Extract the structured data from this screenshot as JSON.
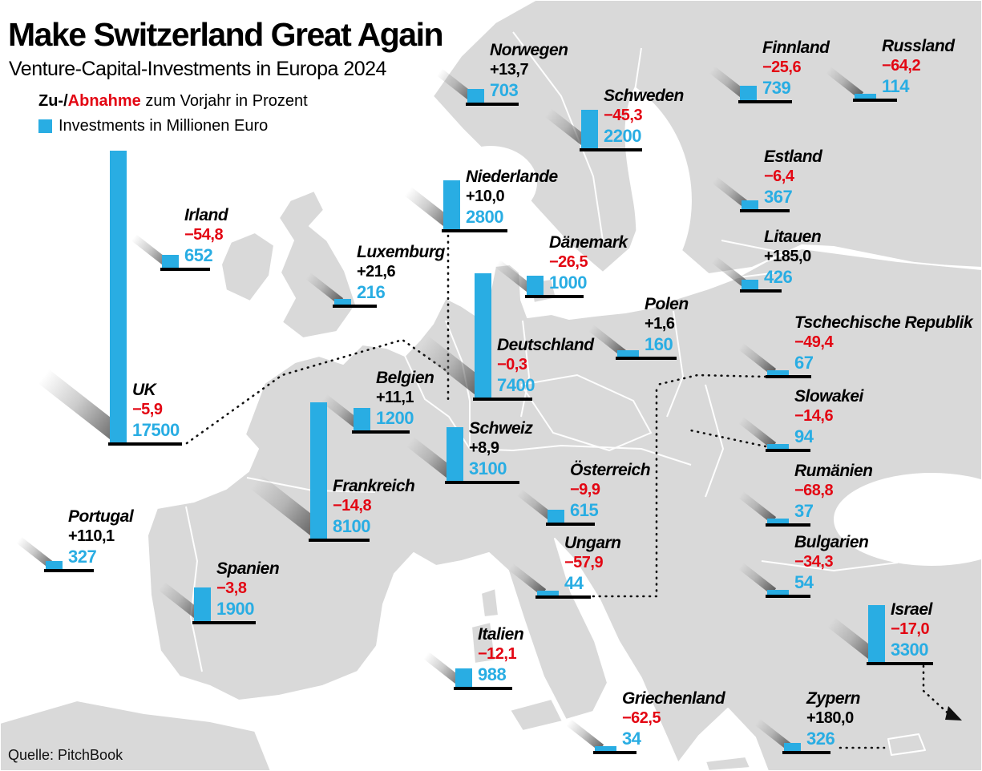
{
  "legend": {
    "change_prefix": "Zu-/",
    "change_negative_word": "Abnahme",
    "change_suffix": " zum Vorjahr in Prozent",
    "investments_label": "Investments in Millionen Euro",
    "investments_swatch": "cyan-square"
  },
  "source": {
    "label": "Quelle: PitchBook"
  },
  "colors": {
    "accent_cyan": "#29ade3",
    "negative_red": "#e30613",
    "text_black": "#000000",
    "map_land_gray": "#d9d9d9",
    "sea_white": "#ffffff"
  },
  "chart_data": {
    "type": "bar",
    "title": "Make Switzerland Great Again",
    "subtitle": "Venture-Capital-Investments in Europa 2024",
    "unit": "Millionen Euro",
    "change_note": "Zu-/Abnahme zum Vorjahr in Prozent",
    "value_note": "Investments in Millionen Euro",
    "source": "Quelle: PitchBook",
    "countries": [
      {
        "name": "Norwegen",
        "change_pct": "+13,7",
        "investments": "703",
        "value": 703
      },
      {
        "name": "Finnland",
        "change_pct": "−25,6",
        "investments": "739",
        "value": 739
      },
      {
        "name": "Russland",
        "change_pct": "−64,2",
        "investments": "114",
        "value": 114
      },
      {
        "name": "Schweden",
        "change_pct": "−45,3",
        "investments": "2200",
        "value": 2200
      },
      {
        "name": "Niederlande",
        "change_pct": "+10,0",
        "investments": "2800",
        "value": 2800
      },
      {
        "name": "Estland",
        "change_pct": "−6,4",
        "investments": "367",
        "value": 367
      },
      {
        "name": "Irland",
        "change_pct": "−54,8",
        "investments": "652",
        "value": 652
      },
      {
        "name": "Dänemark",
        "change_pct": "−26,5",
        "investments": "1000",
        "value": 1000
      },
      {
        "name": "Litauen",
        "change_pct": "+185,0",
        "investments": "426",
        "value": 426
      },
      {
        "name": "Luxemburg",
        "change_pct": "+21,6",
        "investments": "216",
        "value": 216
      },
      {
        "name": "Polen",
        "change_pct": "+1,6",
        "investments": "160",
        "value": 160
      },
      {
        "name": "Tschechische Republik",
        "change_pct": "−49,4",
        "investments": "67",
        "value": 67
      },
      {
        "name": "Deutschland",
        "change_pct": "−0,3",
        "investments": "7400",
        "value": 7400
      },
      {
        "name": "Belgien",
        "change_pct": "+11,1",
        "investments": "1200",
        "value": 1200
      },
      {
        "name": "UK",
        "change_pct": "−5,9",
        "investments": "17500",
        "value": 17500
      },
      {
        "name": "Slowakei",
        "change_pct": "−14,6",
        "investments": "94",
        "value": 94
      },
      {
        "name": "Schweiz",
        "change_pct": "+8,9",
        "investments": "3100",
        "value": 3100
      },
      {
        "name": "Österreich",
        "change_pct": "−9,9",
        "investments": "615",
        "value": 615
      },
      {
        "name": "Rumänien",
        "change_pct": "−68,8",
        "investments": "37",
        "value": 37
      },
      {
        "name": "Frankreich",
        "change_pct": "−14,8",
        "investments": "8100",
        "value": 8100
      },
      {
        "name": "Portugal",
        "change_pct": "+110,1",
        "investments": "327",
        "value": 327
      },
      {
        "name": "Ungarn",
        "change_pct": "−57,9",
        "investments": "44",
        "value": 44
      },
      {
        "name": "Bulgarien",
        "change_pct": "−34,3",
        "investments": "54",
        "value": 54
      },
      {
        "name": "Spanien",
        "change_pct": "−3,8",
        "investments": "1900",
        "value": 1900
      },
      {
        "name": "Israel",
        "change_pct": "−17,0",
        "investments": "3300",
        "value": 3300
      },
      {
        "name": "Italien",
        "change_pct": "−12,1",
        "investments": "988",
        "value": 988
      },
      {
        "name": "Griechenland",
        "change_pct": "−62,5",
        "investments": "34",
        "value": 34
      },
      {
        "name": "Zypern",
        "change_pct": "+180,0",
        "investments": "326",
        "value": 326
      }
    ]
  }
}
